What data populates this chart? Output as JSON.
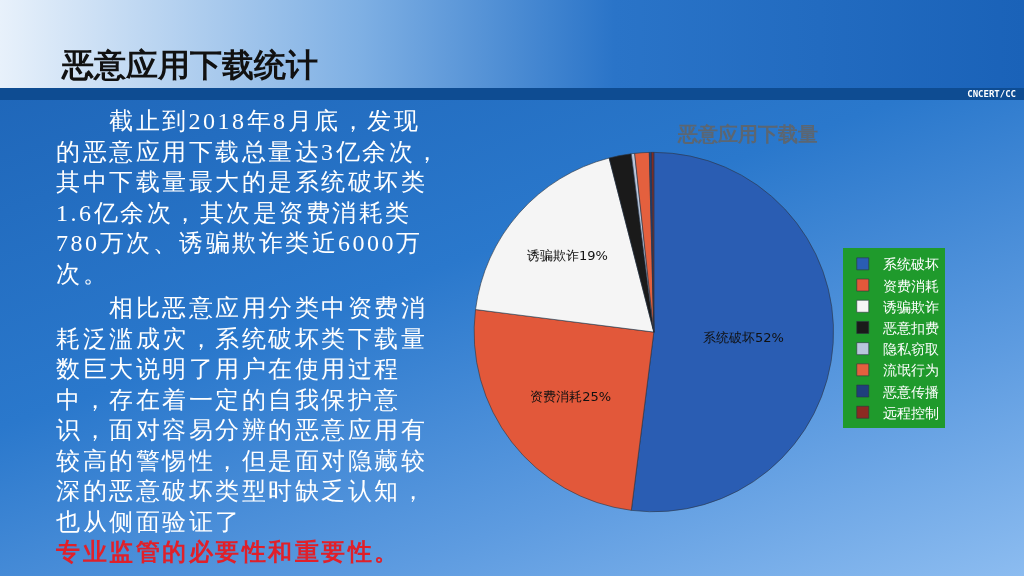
{
  "chart_data": {
    "type": "pie",
    "title": "恶意应用下载量",
    "categories": [
      "系统破坏",
      "资费消耗",
      "诱骗欺诈",
      "恶意扣费",
      "隐私窃取",
      "流氓行为",
      "恶意传播",
      "远程控制"
    ],
    "values": [
      52,
      25,
      19,
      2,
      0.3,
      1.3,
      0.2,
      0.2
    ],
    "colors": [
      "#2a5db3",
      "#e2583a",
      "#f5f5f5",
      "#1a1a1a",
      "#b9c6dc",
      "#e4603e",
      "#1f3f7c",
      "#8c2a22"
    ],
    "value_labels": [
      "系统破坏52%",
      "资费消耗25%",
      "诱骗欺诈19%",
      null,
      null,
      null,
      null,
      null
    ],
    "legend": "right",
    "annotations": [
      "恶意应用下载统计",
      "截止到2018年8月底，发现的恶意应用下载总量达3亿余次，其中下载量最大的是系统破坏类1.6亿余次，其次是资费消耗类780万次、诱骗欺诈类近6000万次。",
      "相比恶意应用分类中资费消耗泛滥成灾，系统破坏类下载量数巨大说明了用户在使用过程中，存在着一定的自我保护意识，面对容易分辨的恶意应用有较高的警惕性，但是面对隐藏较深的恶意破坏类型时缺乏认知，也从侧面验证了",
      "专业监管的必要性和重要性。",
      "CNCERT/CC"
    ]
  }
}
